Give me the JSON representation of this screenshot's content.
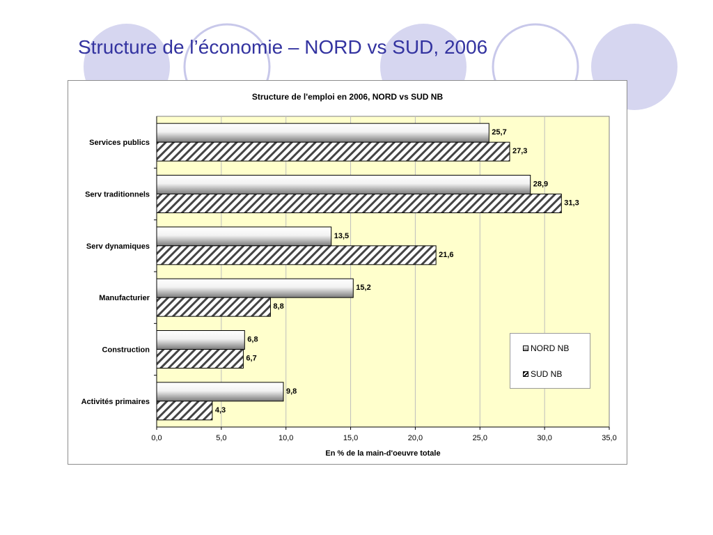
{
  "slide": {
    "title": "Structure de l’économie – NORD vs SUD, 2006"
  },
  "colors": {
    "title_text": "#3333a0",
    "decor_circle_fill": "#d6d6f0",
    "decor_circle_stroke": "#c8c8ea",
    "plot_background": "#ffffcc",
    "bar_outline": "#000000"
  },
  "chart_data": {
    "type": "bar",
    "orientation": "horizontal",
    "title": "Structure de l'emploi en 2006, NORD vs SUD NB",
    "xlabel": "En % de la main-d'oeuvre totale",
    "ylabel": "",
    "categories": [
      "Services publics",
      "Serv traditionnels",
      "Serv dynamiques",
      "Manufacturier",
      "Construction",
      "Activités primaires"
    ],
    "series": [
      {
        "name": "NORD NB",
        "values": [
          25.7,
          28.9,
          13.5,
          15.2,
          6.8,
          9.8
        ],
        "labels": [
          "25,7",
          "28,9",
          "13,5",
          "15,2",
          "6,8",
          "9,8"
        ],
        "fill": "gradient-gray"
      },
      {
        "name": "SUD NB",
        "values": [
          27.3,
          31.3,
          21.6,
          8.8,
          6.7,
          4.3
        ],
        "labels": [
          "27,3",
          "31,3",
          "21,6",
          "8,8",
          "6,7",
          "4,3"
        ],
        "fill": "diagonal-hatch"
      }
    ],
    "xlim": [
      0,
      35
    ],
    "x_ticks": [
      0,
      5,
      10,
      15,
      20,
      25,
      30,
      35
    ],
    "x_tick_labels": [
      "0,0",
      "5,0",
      "10,0",
      "15,0",
      "20,0",
      "25,0",
      "30,0",
      "35,0"
    ],
    "grid": "vertical",
    "legend_position": "right-lower"
  }
}
